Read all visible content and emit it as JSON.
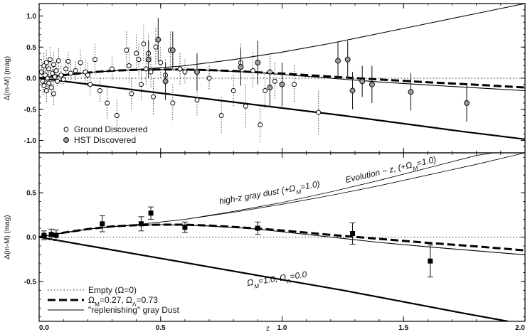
{
  "chart_data": [
    {
      "type": "scatter",
      "panel": "top",
      "xlabel": "",
      "ylabel": "Δ(m-M) (mag)",
      "xlim": [
        0,
        2.0
      ],
      "ylim": [
        -1.2,
        1.2
      ],
      "yticks": [
        {
          "v": 1.0,
          "label": "1.0"
        },
        {
          "v": 0.5,
          "label": "0.5"
        },
        {
          "v": 0.0,
          "label": "0.0"
        },
        {
          "v": -0.5,
          "label": "-0.5"
        },
        {
          "v": -1.0,
          "label": "-1.0"
        }
      ],
      "grid": false,
      "legend_position": "bottom-left",
      "curves": [
        {
          "name": "",
          "style": "dotted",
          "points": [
            [
              0,
              0
            ],
            [
              2.0,
              0
            ]
          ]
        },
        {
          "name": "",
          "style": "dashed",
          "points": [
            [
              0,
              0
            ],
            [
              0.1,
              0.05
            ],
            [
              0.2,
              0.09
            ],
            [
              0.3,
              0.12
            ],
            [
              0.4,
              0.135
            ],
            [
              0.5,
              0.14
            ],
            [
              0.6,
              0.14
            ],
            [
              0.7,
              0.13
            ],
            [
              0.8,
              0.115
            ],
            [
              0.9,
              0.095
            ],
            [
              1.0,
              0.075
            ],
            [
              1.2,
              0.025
            ],
            [
              1.4,
              -0.02
            ],
            [
              1.6,
              -0.065
            ],
            [
              1.8,
              -0.105
            ],
            [
              2.0,
              -0.15
            ]
          ]
        },
        {
          "name": "",
          "style": "solid",
          "points": [
            [
              0,
              0
            ],
            [
              0.1,
              0.05
            ],
            [
              0.2,
              0.09
            ],
            [
              0.3,
              0.12
            ],
            [
              0.4,
              0.135
            ],
            [
              0.5,
              0.14
            ],
            [
              0.6,
              0.135
            ],
            [
              0.7,
              0.125
            ],
            [
              0.8,
              0.11
            ],
            [
              0.9,
              0.09
            ],
            [
              1.0,
              0.06
            ],
            [
              1.2,
              0.0
            ],
            [
              1.4,
              -0.06
            ],
            [
              1.6,
              -0.11
            ],
            [
              1.8,
              -0.155
            ],
            [
              2.0,
              -0.2
            ]
          ]
        },
        {
          "name": "",
          "style": "solid",
          "points": [
            [
              0,
              0
            ],
            [
              0.2,
              0.09
            ],
            [
              0.4,
              0.14
            ],
            [
              0.6,
              0.2
            ],
            [
              0.8,
              0.3
            ],
            [
              1.0,
              0.42
            ],
            [
              1.2,
              0.56
            ],
            [
              1.4,
              0.72
            ],
            [
              1.6,
              0.88
            ],
            [
              1.8,
              1.04
            ],
            [
              2.0,
              1.2
            ]
          ]
        },
        {
          "name": "",
          "style": "solid-heavy",
          "points": [
            [
              0,
              0
            ],
            [
              0.25,
              -0.12
            ],
            [
              0.5,
              -0.24
            ],
            [
              0.75,
              -0.36
            ],
            [
              1.0,
              -0.48
            ],
            [
              1.25,
              -0.6
            ],
            [
              1.5,
              -0.73
            ],
            [
              1.75,
              -0.86
            ],
            [
              2.0,
              -0.98
            ]
          ]
        }
      ],
      "series": [
        {
          "name": "Ground Discovered",
          "marker": "open-circle",
          "points": [
            [
              0.01,
              0.1,
              0.2
            ],
            [
              0.015,
              -0.05,
              0.2
            ],
            [
              0.02,
              0.2,
              0.2
            ],
            [
              0.02,
              -0.12,
              0.15
            ],
            [
              0.025,
              0.05,
              0.15
            ],
            [
              0.03,
              0.25,
              0.2
            ],
            [
              0.03,
              -0.2,
              0.2
            ],
            [
              0.035,
              0.0,
              0.15
            ],
            [
              0.04,
              0.15,
              0.15
            ],
            [
              0.04,
              -0.08,
              0.15
            ],
            [
              0.045,
              0.3,
              0.2
            ],
            [
              0.05,
              -0.15,
              0.15
            ],
            [
              0.055,
              0.08,
              0.15
            ],
            [
              0.06,
              0.22,
              0.2
            ],
            [
              0.06,
              -0.25,
              0.2
            ],
            [
              0.065,
              0.02,
              0.1
            ],
            [
              0.07,
              0.12,
              0.15
            ],
            [
              0.075,
              -0.05,
              0.1
            ],
            [
              0.08,
              0.28,
              0.2
            ],
            [
              0.09,
              0.05,
              0.15
            ],
            [
              0.1,
              -0.02,
              0.1
            ],
            [
              0.11,
              0.15,
              0.15
            ],
            [
              0.12,
              0.27,
              0.15
            ],
            [
              0.13,
              0.08,
              0.15
            ],
            [
              0.15,
              0.12,
              0.15
            ],
            [
              0.17,
              0.25,
              0.2
            ],
            [
              0.19,
              0.1,
              0.2
            ],
            [
              0.2,
              0.05,
              0.2
            ],
            [
              0.21,
              -0.1,
              0.2
            ],
            [
              0.23,
              0.3,
              0.25
            ],
            [
              0.25,
              -0.2,
              0.2
            ],
            [
              0.28,
              -0.4,
              0.25
            ],
            [
              0.3,
              0.15,
              0.2
            ],
            [
              0.32,
              -0.6,
              0.25
            ],
            [
              0.36,
              0.45,
              0.3
            ],
            [
              0.37,
              0.2,
              0.3
            ],
            [
              0.38,
              -0.25,
              0.25
            ],
            [
              0.4,
              0.4,
              0.3
            ],
            [
              0.41,
              0.3,
              0.25
            ],
            [
              0.42,
              -0.1,
              0.25
            ],
            [
              0.43,
              0.55,
              0.3
            ],
            [
              0.44,
              0.15,
              0.25
            ],
            [
              0.45,
              0.4,
              0.3
            ],
            [
              0.46,
              0.1,
              0.25
            ],
            [
              0.47,
              -0.3,
              0.3
            ],
            [
              0.48,
              0.5,
              0.3
            ],
            [
              0.5,
              0.25,
              0.25
            ],
            [
              0.52,
              0.05,
              0.25
            ],
            [
              0.54,
              0.45,
              0.3
            ],
            [
              0.55,
              -0.4,
              0.3
            ],
            [
              0.58,
              0.15,
              0.25
            ],
            [
              0.6,
              0.1,
              0.2
            ],
            [
              0.65,
              -0.35,
              0.25
            ],
            [
              0.7,
              0.0,
              0.2
            ],
            [
              0.75,
              -0.6,
              0.3
            ],
            [
              0.8,
              -0.2,
              0.25
            ],
            [
              0.83,
              0.25,
              0.3
            ],
            [
              0.85,
              -0.45,
              0.35
            ],
            [
              0.88,
              0.12,
              0.3
            ],
            [
              0.91,
              -0.75,
              0.3
            ],
            [
              0.93,
              -0.2,
              0.3
            ],
            [
              0.95,
              0.1,
              0.3
            ],
            [
              0.97,
              -0.05,
              0.3
            ],
            [
              1.05,
              -0.1,
              0.3
            ],
            [
              1.15,
              -0.55,
              0.35
            ]
          ]
        },
        {
          "name": "HST Discovered",
          "marker": "shaded-circle",
          "points": [
            [
              0.45,
              0.3,
              0.3
            ],
            [
              0.49,
              0.62,
              0.35
            ],
            [
              0.52,
              -0.05,
              0.3
            ],
            [
              0.55,
              0.45,
              0.3
            ],
            [
              0.65,
              0.1,
              0.3
            ],
            [
              0.83,
              0.18,
              0.3
            ],
            [
              0.9,
              0.25,
              0.35
            ],
            [
              0.95,
              -0.15,
              0.3
            ],
            [
              1.0,
              -0.1,
              0.35
            ],
            [
              1.23,
              0.28,
              0.3
            ],
            [
              1.27,
              0.3,
              0.3
            ],
            [
              1.29,
              -0.2,
              0.3
            ],
            [
              1.33,
              -0.05,
              0.25
            ],
            [
              1.37,
              -0.1,
              0.3
            ],
            [
              1.53,
              -0.22,
              0.3
            ],
            [
              1.76,
              -0.4,
              0.3
            ]
          ]
        }
      ]
    },
    {
      "type": "scatter",
      "panel": "bottom",
      "xlabel": "z",
      "ylabel": "Δ(m-M) (mag)",
      "xlim": [
        0,
        2.0
      ],
      "ylim": [
        -0.95,
        0.95
      ],
      "xticks": [
        {
          "v": 0.0,
          "label": "0.0"
        },
        {
          "v": 0.5,
          "label": "0.5"
        },
        {
          "v": 1.0,
          "label": "1.0"
        },
        {
          "v": 1.5,
          "label": "1.5"
        },
        {
          "v": 2.0,
          "label": "2.0"
        }
      ],
      "yticks": [
        {
          "v": 0.5,
          "label": "0.5"
        },
        {
          "v": 0.0,
          "label": "0.0"
        },
        {
          "v": -0.5,
          "label": "-0.5"
        }
      ],
      "grid": false,
      "legend_position": "bottom-left",
      "legend": [
        {
          "label": "Empty (Ω=0)",
          "style": "dotted"
        },
        {
          "label": "ΩM=0.27, ΩΛ=0.73",
          "style": "dashed"
        },
        {
          "label": "\"replenishing\" gray Dust",
          "style": "solid"
        }
      ],
      "annotations": [
        {
          "text": "high-z gray dust (+ΩM=1.0)",
          "x": 0.95,
          "y": 0.47
        },
        {
          "text": "Evolution ~ z, (+ΩM=1.0)",
          "x": 1.45,
          "y": 0.73
        },
        {
          "text": "ΩM=1.0, ΩΛ=0.0",
          "x": 0.98,
          "y": -0.5
        }
      ],
      "curves": [
        {
          "name": "Empty (Ω=0)",
          "style": "dotted",
          "points": [
            [
              0,
              0
            ],
            [
              2.0,
              0
            ]
          ]
        },
        {
          "name": "ΩM=0.27, ΩΛ=0.73",
          "style": "dashed",
          "points": [
            [
              0,
              0
            ],
            [
              0.1,
              0.05
            ],
            [
              0.2,
              0.09
            ],
            [
              0.3,
              0.12
            ],
            [
              0.4,
              0.135
            ],
            [
              0.5,
              0.14
            ],
            [
              0.6,
              0.14
            ],
            [
              0.7,
              0.13
            ],
            [
              0.8,
              0.115
            ],
            [
              0.9,
              0.095
            ],
            [
              1.0,
              0.075
            ],
            [
              1.2,
              0.025
            ],
            [
              1.4,
              -0.02
            ],
            [
              1.6,
              -0.065
            ],
            [
              1.8,
              -0.105
            ],
            [
              2.0,
              -0.15
            ]
          ]
        },
        {
          "name": "\"replenishing\" gray Dust",
          "style": "solid",
          "points": [
            [
              0,
              0
            ],
            [
              0.1,
              0.05
            ],
            [
              0.2,
              0.09
            ],
            [
              0.3,
              0.12
            ],
            [
              0.4,
              0.135
            ],
            [
              0.5,
              0.14
            ],
            [
              0.6,
              0.135
            ],
            [
              0.7,
              0.125
            ],
            [
              0.8,
              0.11
            ],
            [
              0.9,
              0.09
            ],
            [
              1.0,
              0.06
            ],
            [
              1.2,
              0.0
            ],
            [
              1.4,
              -0.06
            ],
            [
              1.6,
              -0.11
            ],
            [
              1.8,
              -0.155
            ],
            [
              2.0,
              -0.2
            ]
          ]
        },
        {
          "name": "high-z gray dust (+ΩM=1.0)",
          "style": "solid-thin",
          "points": [
            [
              0,
              0
            ],
            [
              0.2,
              0.09
            ],
            [
              0.4,
              0.14
            ],
            [
              0.6,
              0.2
            ],
            [
              0.8,
              0.29
            ],
            [
              1.0,
              0.39
            ],
            [
              1.2,
              0.51
            ],
            [
              1.4,
              0.64
            ],
            [
              1.6,
              0.78
            ],
            [
              1.8,
              0.92
            ],
            [
              1.87,
              0.95
            ]
          ]
        },
        {
          "name": "Evolution ~ z, (+ΩM=1.0)",
          "style": "solid-thin",
          "points": [
            [
              0,
              0
            ],
            [
              0.2,
              0.09
            ],
            [
              0.4,
              0.14
            ],
            [
              0.6,
              0.2
            ],
            [
              0.8,
              0.28
            ],
            [
              1.0,
              0.37
            ],
            [
              1.2,
              0.47
            ],
            [
              1.4,
              0.58
            ],
            [
              1.6,
              0.7
            ],
            [
              1.8,
              0.82
            ],
            [
              2.0,
              0.95
            ]
          ]
        },
        {
          "name": "ΩM=1.0, ΩΛ=0.0",
          "style": "solid-heavy",
          "points": [
            [
              0,
              0
            ],
            [
              0.25,
              -0.12
            ],
            [
              0.5,
              -0.24
            ],
            [
              0.75,
              -0.36
            ],
            [
              1.0,
              -0.48
            ],
            [
              1.25,
              -0.6
            ],
            [
              1.5,
              -0.73
            ],
            [
              1.75,
              -0.86
            ],
            [
              1.93,
              -0.95
            ]
          ]
        }
      ],
      "series": [
        {
          "name": "",
          "marker": "filled-square",
          "points": [
            [
              0.02,
              0.02,
              0.05
            ],
            [
              0.05,
              0.03,
              0.06
            ],
            [
              0.07,
              0.02,
              0.06
            ],
            [
              0.26,
              0.15,
              0.09
            ],
            [
              0.42,
              0.15,
              0.08
            ],
            [
              0.46,
              0.27,
              0.07
            ],
            [
              0.6,
              0.11,
              0.06
            ],
            [
              0.9,
              0.1,
              0.07
            ],
            [
              1.29,
              0.04,
              0.12
            ],
            [
              1.61,
              -0.27,
              0.18
            ]
          ]
        }
      ]
    }
  ]
}
